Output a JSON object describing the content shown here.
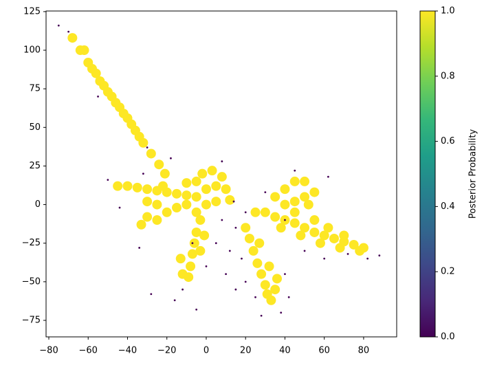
{
  "chart_data": {
    "type": "scatter",
    "colormap": "viridis",
    "colorbar_label": "Posterior Probability",
    "clim": [
      0,
      1
    ],
    "cticks": [
      {
        "value": 0,
        "label": "0.0"
      },
      0.2,
      0.4,
      0.6,
      0.8,
      {
        "value": 1,
        "label": "1.0"
      }
    ],
    "xlim": [
      -81.4,
      96.8
    ],
    "ylim": [
      -85.7,
      125.4
    ],
    "xticks": [
      {
        "value": -80,
        "label": "−80"
      },
      {
        "value": -60,
        "label": "−60"
      },
      {
        "value": -40,
        "label": "−40"
      },
      {
        "value": -20,
        "label": "−20"
      },
      0,
      20,
      40,
      60,
      80
    ],
    "yticks": [
      {
        "value": -75,
        "label": "−75"
      },
      {
        "value": -50,
        "label": "−50"
      },
      {
        "value": -25,
        "label": "−25"
      },
      0,
      25,
      50,
      75,
      100,
      125
    ],
    "x": [
      -68,
      -64,
      -60,
      -56,
      -52,
      -48,
      -44,
      -40,
      -36,
      -32,
      -28,
      -24,
      -21,
      -62,
      -58,
      -54,
      -50,
      -46,
      -42,
      -38,
      -34,
      -45,
      -40,
      -35,
      -30,
      -25,
      -20,
      -15,
      -10,
      -5,
      0,
      5,
      10,
      -2,
      3,
      8,
      -30,
      -25,
      -30,
      -33,
      -25,
      -20,
      -15,
      -10,
      -5,
      0,
      5,
      12,
      -22,
      -10,
      -5,
      -3,
      -5,
      -6,
      -7,
      -8,
      -9,
      -12,
      -3,
      -1,
      -13,
      20,
      22,
      24,
      26,
      28,
      30,
      31,
      33,
      35,
      32,
      27,
      36,
      35,
      40,
      45,
      50,
      40,
      45,
      50,
      55,
      30,
      35,
      40,
      45,
      50,
      55,
      60,
      65,
      70,
      75,
      80,
      55,
      62,
      70,
      38,
      48,
      58,
      68,
      78,
      25,
      45,
      52,
      -75,
      -70,
      -50,
      -55,
      -30,
      -18,
      -44,
      -34,
      -12,
      -16,
      -5,
      -7,
      -28,
      8,
      12,
      10,
      15,
      18,
      20,
      15,
      28,
      38,
      42,
      40,
      50,
      88,
      82,
      62,
      45,
      40,
      8,
      20,
      5,
      -32,
      14,
      25,
      60,
      30,
      72,
      0
    ],
    "y": [
      108,
      100,
      92,
      85,
      77,
      70,
      63,
      56,
      48,
      40,
      33,
      26,
      20,
      100,
      88,
      80,
      73,
      66,
      59,
      52,
      44,
      12,
      12,
      11,
      10,
      9,
      8,
      7,
      6,
      5,
      10,
      12,
      10,
      20,
      22,
      18,
      2,
      0,
      -8,
      -13,
      -10,
      -5,
      -2,
      0,
      -5,
      0,
      2,
      3,
      12,
      14,
      15,
      -10,
      -18,
      -25,
      -32,
      -40,
      -47,
      -45,
      -30,
      -20,
      -35,
      -15,
      -22,
      -30,
      -38,
      -45,
      -52,
      -58,
      -62,
      -55,
      -40,
      -25,
      -48,
      5,
      10,
      15,
      15,
      0,
      2,
      5,
      8,
      -5,
      -8,
      -10,
      -12,
      -15,
      -18,
      -20,
      -22,
      -24,
      -26,
      -28,
      -10,
      -15,
      -20,
      -15,
      -20,
      -25,
      -28,
      -30,
      -5,
      -5,
      0,
      116,
      112,
      16,
      70,
      37,
      30,
      -2,
      -28,
      -55,
      -62,
      -68,
      -25,
      -58,
      -10,
      -30,
      -45,
      -15,
      -35,
      -50,
      -55,
      -72,
      -70,
      -60,
      -45,
      -30,
      -33,
      -35,
      18,
      22,
      -10,
      28,
      -5,
      -25,
      20,
      2,
      -60,
      -35,
      8,
      -32,
      -40
    ],
    "c": [
      1,
      1,
      1,
      1,
      1,
      1,
      1,
      1,
      1,
      1,
      1,
      1,
      1,
      1,
      1,
      1,
      1,
      1,
      1,
      1,
      1,
      1,
      1,
      1,
      1,
      1,
      1,
      1,
      1,
      1,
      1,
      1,
      1,
      1,
      1,
      1,
      1,
      1,
      1,
      1,
      1,
      1,
      1,
      1,
      1,
      1,
      1,
      1,
      1,
      1,
      1,
      1,
      1,
      1,
      1,
      1,
      1,
      1,
      1,
      1,
      1,
      1,
      1,
      1,
      1,
      1,
      1,
      1,
      1,
      1,
      1,
      1,
      1,
      1,
      1,
      1,
      1,
      1,
      1,
      1,
      1,
      1,
      1,
      1,
      1,
      1,
      1,
      1,
      1,
      1,
      1,
      1,
      1,
      1,
      1,
      1,
      1,
      1,
      1,
      1,
      1,
      1,
      1,
      0,
      0,
      0,
      0,
      0,
      0,
      0,
      0,
      0,
      0,
      0,
      0,
      0,
      0,
      0,
      0,
      0,
      0,
      0,
      0,
      0,
      0,
      0,
      0,
      0,
      0,
      0,
      0,
      0,
      0,
      0,
      0,
      0,
      0,
      0,
      0,
      0,
      0,
      0,
      0
    ]
  }
}
